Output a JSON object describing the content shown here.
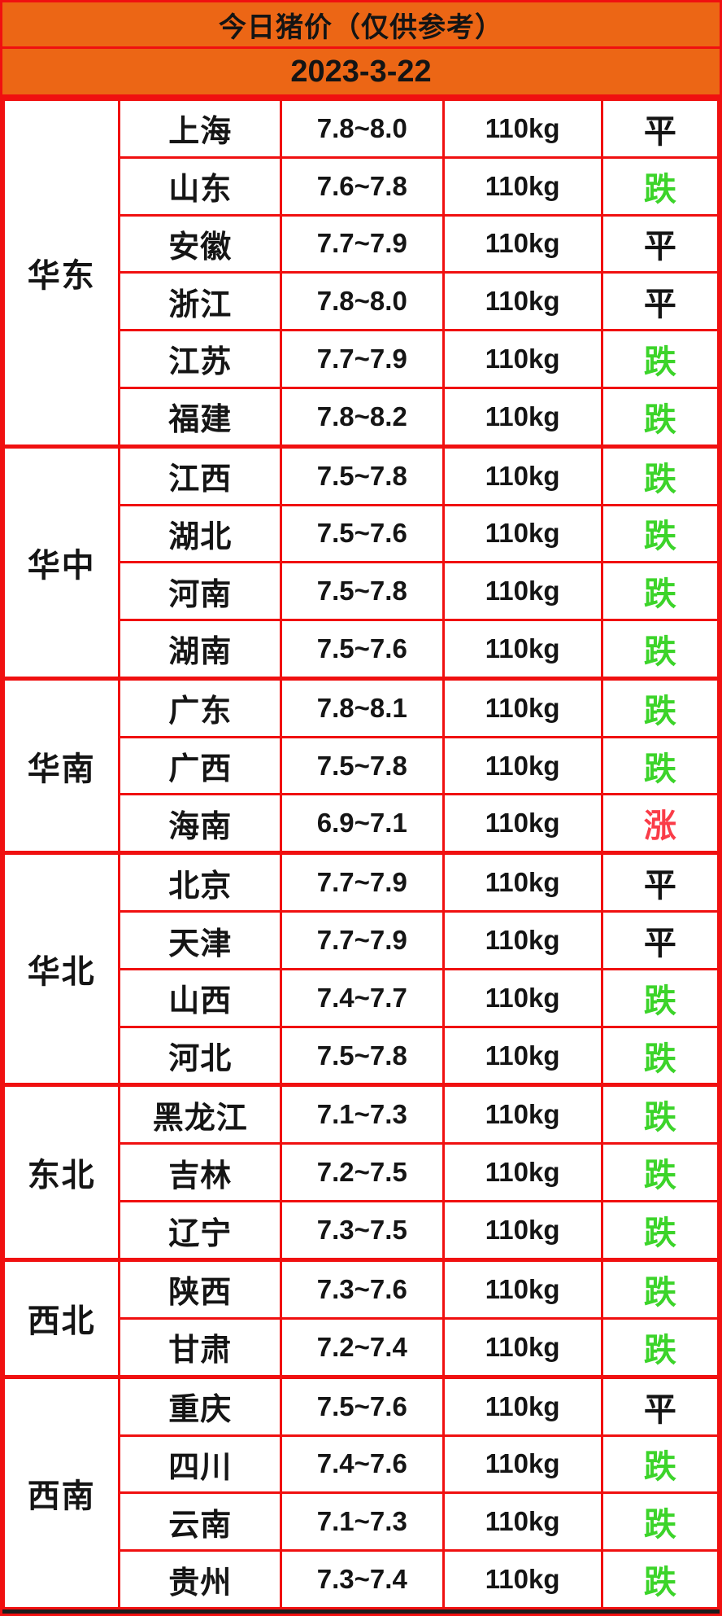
{
  "header": {
    "title": "今日猪价（仅供参考）",
    "date": "2023-3-22"
  },
  "colors": {
    "header_background": "#EC6615",
    "grid_border_red": "#F01010",
    "trend_down_green": "#3CD42A",
    "trend_up_red": "#FA3C48",
    "trend_flat_black": "#141414"
  },
  "chart_data": {
    "type": "table",
    "title": "今日猪价（仅供参考）",
    "date": "2023-3-22",
    "columns": [
      "region",
      "province",
      "price_range",
      "weight_standard",
      "trend"
    ],
    "legend": {
      "平": "flat",
      "跌": "down",
      "涨": "up"
    },
    "groups": [
      {
        "region": "华东",
        "rows": [
          {
            "province": "上海",
            "price": "7.8~8.0",
            "weight": "110kg",
            "trend": "平",
            "dir": "flat"
          },
          {
            "province": "山东",
            "price": "7.6~7.8",
            "weight": "110kg",
            "trend": "跌",
            "dir": "down"
          },
          {
            "province": "安徽",
            "price": "7.7~7.9",
            "weight": "110kg",
            "trend": "平",
            "dir": "flat"
          },
          {
            "province": "浙江",
            "price": "7.8~8.0",
            "weight": "110kg",
            "trend": "平",
            "dir": "flat"
          },
          {
            "province": "江苏",
            "price": "7.7~7.9",
            "weight": "110kg",
            "trend": "跌",
            "dir": "down"
          },
          {
            "province": "福建",
            "price": "7.8~8.2",
            "weight": "110kg",
            "trend": "跌",
            "dir": "down"
          }
        ]
      },
      {
        "region": "华中",
        "rows": [
          {
            "province": "江西",
            "price": "7.5~7.8",
            "weight": "110kg",
            "trend": "跌",
            "dir": "down"
          },
          {
            "province": "湖北",
            "price": "7.5~7.6",
            "weight": "110kg",
            "trend": "跌",
            "dir": "down"
          },
          {
            "province": "河南",
            "price": "7.5~7.8",
            "weight": "110kg",
            "trend": "跌",
            "dir": "down"
          },
          {
            "province": "湖南",
            "price": "7.5~7.6",
            "weight": "110kg",
            "trend": "跌",
            "dir": "down"
          }
        ]
      },
      {
        "region": "华南",
        "rows": [
          {
            "province": "广东",
            "price": "7.8~8.1",
            "weight": "110kg",
            "trend": "跌",
            "dir": "down"
          },
          {
            "province": "广西",
            "price": "7.5~7.8",
            "weight": "110kg",
            "trend": "跌",
            "dir": "down"
          },
          {
            "province": "海南",
            "price": "6.9~7.1",
            "weight": "110kg",
            "trend": "涨",
            "dir": "up"
          }
        ]
      },
      {
        "region": "华北",
        "rows": [
          {
            "province": "北京",
            "price": "7.7~7.9",
            "weight": "110kg",
            "trend": "平",
            "dir": "flat"
          },
          {
            "province": "天津",
            "price": "7.7~7.9",
            "weight": "110kg",
            "trend": "平",
            "dir": "flat"
          },
          {
            "province": "山西",
            "price": "7.4~7.7",
            "weight": "110kg",
            "trend": "跌",
            "dir": "down"
          },
          {
            "province": "河北",
            "price": "7.5~7.8",
            "weight": "110kg",
            "trend": "跌",
            "dir": "down"
          }
        ]
      },
      {
        "region": "东北",
        "rows": [
          {
            "province": "黑龙江",
            "price": "7.1~7.3",
            "weight": "110kg",
            "trend": "跌",
            "dir": "down"
          },
          {
            "province": "吉林",
            "price": "7.2~7.5",
            "weight": "110kg",
            "trend": "跌",
            "dir": "down"
          },
          {
            "province": "辽宁",
            "price": "7.3~7.5",
            "weight": "110kg",
            "trend": "跌",
            "dir": "down"
          }
        ]
      },
      {
        "region": "西北",
        "rows": [
          {
            "province": "陕西",
            "price": "7.3~7.6",
            "weight": "110kg",
            "trend": "跌",
            "dir": "down"
          },
          {
            "province": "甘肃",
            "price": "7.2~7.4",
            "weight": "110kg",
            "trend": "跌",
            "dir": "down"
          }
        ]
      },
      {
        "region": "西南",
        "rows": [
          {
            "province": "重庆",
            "price": "7.5~7.6",
            "weight": "110kg",
            "trend": "平",
            "dir": "flat"
          },
          {
            "province": "四川",
            "price": "7.4~7.6",
            "weight": "110kg",
            "trend": "跌",
            "dir": "down"
          },
          {
            "province": "云南",
            "price": "7.1~7.3",
            "weight": "110kg",
            "trend": "跌",
            "dir": "down"
          },
          {
            "province": "贵州",
            "price": "7.3~7.4",
            "weight": "110kg",
            "trend": "跌",
            "dir": "down"
          }
        ]
      }
    ]
  }
}
